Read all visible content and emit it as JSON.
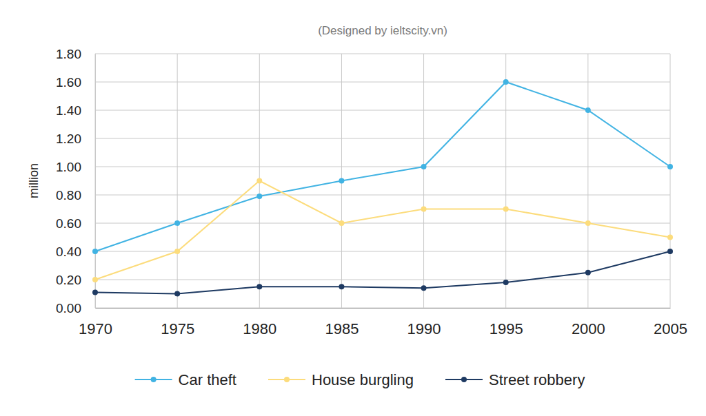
{
  "chart_data": {
    "type": "line",
    "title": "(Designed by ieltscity.vn)",
    "y_label": "million",
    "x": [
      1970,
      1975,
      1980,
      1985,
      1990,
      1995,
      2000,
      2005
    ],
    "series": [
      {
        "name": "Car theft",
        "color": "#41b3e3",
        "marker": "circle",
        "line_style": "solid",
        "values": [
          0.4,
          0.6,
          0.79,
          0.9,
          1.0,
          1.6,
          1.4,
          1.0
        ]
      },
      {
        "name": "House burgling",
        "color": "#fcdc7c",
        "marker": "circle",
        "line_style": "solid",
        "values": [
          0.2,
          0.4,
          0.9,
          0.6,
          0.7,
          0.7,
          0.6,
          0.5
        ]
      },
      {
        "name": "Street robbery",
        "color": "#1e3a62",
        "marker": "circle",
        "line_style": "solid",
        "values": [
          0.11,
          0.1,
          0.15,
          0.15,
          0.14,
          0.18,
          0.25,
          0.4
        ]
      }
    ],
    "xlim": [
      1970,
      2005
    ],
    "xticks": [
      1970,
      1975,
      1980,
      1985,
      1990,
      1995,
      2000,
      2005
    ],
    "ylim": [
      0,
      1.8
    ],
    "yticks": [
      {
        "value": 0,
        "label": "0.00"
      },
      {
        "value": 0.2,
        "label": "0.20"
      },
      {
        "value": 0.4,
        "label": "0.40"
      },
      {
        "value": 0.6,
        "label": "0.60"
      },
      {
        "value": 0.8,
        "label": "0.80"
      },
      {
        "value": 1.0,
        "label": "1.00"
      },
      {
        "value": 1.2,
        "label": "1.20"
      },
      {
        "value": 1.4,
        "label": "1.40"
      },
      {
        "value": 1.6,
        "label": "1.60"
      },
      {
        "value": 1.8,
        "label": "1.80"
      }
    ],
    "grid": true,
    "legend": "bottom"
  }
}
